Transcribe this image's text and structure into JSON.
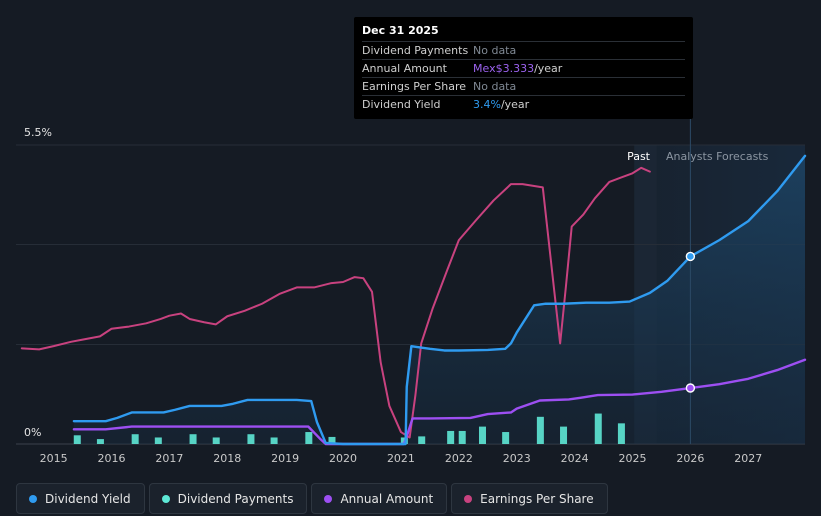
{
  "chart_data": {
    "type": "line",
    "y_max_label": "5.5%",
    "y_min_label": "0%",
    "ylim": [
      0,
      5.5
    ],
    "xlim": [
      2014.35,
      2027.98
    ],
    "x_ticks": [
      "2015",
      "2016",
      "2017",
      "2018",
      "2019",
      "2020",
      "2021",
      "2022",
      "2023",
      "2024",
      "2025",
      "2026",
      "2027"
    ],
    "past_label": "Past",
    "forecast_label": "Analysts Forecasts",
    "past_end": 2025.03,
    "forecast_start": 2025.42,
    "tooltip_x": 2026.0,
    "colors": {
      "dividend_yield": "#2f9bf0",
      "dividend_payments": "#5ee8d6",
      "annual_amount": "#9d4ff2",
      "earnings_per_share": "#c8427f"
    },
    "series": [
      {
        "name": "Dividend Yield",
        "key": "dividend_yield",
        "x": [
          2015.35,
          2015.6,
          2015.9,
          2016.1,
          2016.35,
          2016.9,
          2017.1,
          2017.35,
          2017.9,
          2018.1,
          2018.35,
          2018.7,
          2019.0,
          2019.2,
          2019.45,
          2019.55,
          2019.7,
          2020.0,
          2020.5,
          2021.08,
          2021.1,
          2021.18,
          2021.3,
          2021.5,
          2021.75,
          2022.0,
          2022.5,
          2022.8,
          2022.9,
          2023.0,
          2023.3,
          2023.5,
          2023.8,
          2024.2,
          2024.6,
          2024.95,
          2025.3,
          2025.6,
          2026.0,
          2026.5,
          2027.0,
          2027.5,
          2027.98
        ],
        "values": [
          0.42,
          0.42,
          0.42,
          0.48,
          0.58,
          0.58,
          0.63,
          0.7,
          0.7,
          0.74,
          0.81,
          0.81,
          0.81,
          0.81,
          0.79,
          0.4,
          0.02,
          0.0,
          0.0,
          0.0,
          1.05,
          1.8,
          1.78,
          1.75,
          1.72,
          1.72,
          1.73,
          1.75,
          1.85,
          2.05,
          2.55,
          2.58,
          2.58,
          2.6,
          2.6,
          2.62,
          2.78,
          3.0,
          3.45,
          3.75,
          4.1,
          4.65,
          5.3
        ],
        "forecast_from": 2025.03,
        "marker": [
          2026.0,
          3.45
        ]
      },
      {
        "name": "Annual Amount",
        "key": "annual_amount",
        "x": [
          2015.35,
          2015.9,
          2016.35,
          2017.0,
          2017.5,
          2018.0,
          2018.5,
          2019.0,
          2019.4,
          2019.6,
          2019.7,
          2020.0,
          2020.5,
          2021.05,
          2021.1,
          2021.2,
          2021.5,
          2022.2,
          2022.5,
          2022.9,
          2023.0,
          2023.4,
          2023.9,
          2024.1,
          2024.4,
          2025.0,
          2025.5,
          2026.0,
          2026.5,
          2027.0,
          2027.5,
          2027.98
        ],
        "values": [
          0.27,
          0.27,
          0.32,
          0.32,
          0.32,
          0.32,
          0.32,
          0.32,
          0.32,
          0.1,
          0.0,
          0.0,
          0.0,
          0.0,
          0.14,
          0.47,
          0.47,
          0.48,
          0.55,
          0.58,
          0.65,
          0.8,
          0.82,
          0.85,
          0.9,
          0.91,
          0.96,
          1.03,
          1.1,
          1.2,
          1.36,
          1.55
        ],
        "forecast_from": 2025.03,
        "marker": [
          2026.0,
          1.03
        ]
      },
      {
        "name": "Earnings Per Share",
        "key": "earnings_per_share",
        "x": [
          2014.45,
          2014.75,
          2015.0,
          2015.3,
          2015.5,
          2015.8,
          2016.0,
          2016.3,
          2016.6,
          2016.85,
          2017.0,
          2017.2,
          2017.35,
          2017.6,
          2017.8,
          2018.0,
          2018.3,
          2018.6,
          2018.9,
          2019.2,
          2019.5,
          2019.8,
          2020.0,
          2020.2,
          2020.35,
          2020.5,
          2020.65,
          2020.8,
          2021.0,
          2021.15,
          2021.25,
          2021.35,
          2021.55,
          2021.8,
          2022.0,
          2022.3,
          2022.6,
          2022.9,
          2023.1,
          2023.45,
          2023.65,
          2023.75,
          2023.85,
          2023.95,
          2024.15,
          2024.35,
          2024.6,
          2024.8,
          2025.0,
          2025.15,
          2025.3
        ],
        "values": [
          1.76,
          1.74,
          1.8,
          1.88,
          1.92,
          1.98,
          2.12,
          2.16,
          2.22,
          2.3,
          2.36,
          2.4,
          2.3,
          2.24,
          2.2,
          2.35,
          2.45,
          2.58,
          2.76,
          2.88,
          2.88,
          2.96,
          2.98,
          3.07,
          3.05,
          2.8,
          1.5,
          0.7,
          0.22,
          0.12,
          0.9,
          1.85,
          2.5,
          3.2,
          3.75,
          4.12,
          4.48,
          4.78,
          4.78,
          4.72,
          2.8,
          1.85,
          2.9,
          4.0,
          4.22,
          4.52,
          4.82,
          4.9,
          4.98,
          5.08,
          5.01
        ]
      },
      {
        "name": "Dividend Payments",
        "key": "dividend_payments",
        "type": "bar",
        "x": [
          2015.4,
          2015.8,
          2016.4,
          2016.8,
          2017.4,
          2017.8,
          2018.4,
          2018.8,
          2019.4,
          2019.8,
          2021.05,
          2021.35,
          2021.85,
          2022.05,
          2022.4,
          2022.8,
          2023.4,
          2023.8,
          2024.4,
          2024.8
        ],
        "values": [
          0.16,
          0.09,
          0.18,
          0.12,
          0.18,
          0.12,
          0.18,
          0.12,
          0.22,
          0.13,
          0.12,
          0.14,
          0.24,
          0.24,
          0.32,
          0.22,
          0.5,
          0.32,
          0.56,
          0.38
        ]
      }
    ]
  },
  "tooltip": {
    "date": "Dec 31 2025",
    "rows": {
      "dividend_payments": {
        "label": "Dividend Payments",
        "value": "No data"
      },
      "annual_amount": {
        "label": "Annual Amount",
        "value": "Mex$3.333",
        "unit": "/year"
      },
      "earnings_per_share": {
        "label": "Earnings Per Share",
        "value": "No data"
      },
      "dividend_yield": {
        "label": "Dividend Yield",
        "value": "3.4%",
        "unit": "/year"
      }
    }
  },
  "legend": [
    {
      "label": "Dividend Yield",
      "color": "#2f9bf0"
    },
    {
      "label": "Dividend Payments",
      "color": "#5ee8d6"
    },
    {
      "label": "Annual Amount",
      "color": "#9d4ff2"
    },
    {
      "label": "Earnings Per Share",
      "color": "#c8427f"
    }
  ]
}
